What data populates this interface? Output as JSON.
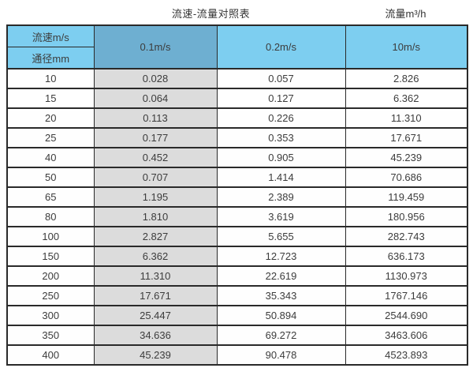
{
  "header": {
    "title_left": "流速-流量对照表",
    "title_right": "流量m³/h"
  },
  "table": {
    "corner_top": "流速m/s",
    "corner_bottom": "通径mm",
    "columns": [
      "0.1m/s",
      "0.2m/s",
      "10m/s"
    ],
    "rows": [
      {
        "dn": "10",
        "values": [
          "0.028",
          "0.057",
          "2.826"
        ]
      },
      {
        "dn": "15",
        "values": [
          "0.064",
          "0.127",
          "6.362"
        ]
      },
      {
        "dn": "20",
        "values": [
          "0.113",
          "0.226",
          "11.310"
        ]
      },
      {
        "dn": "25",
        "values": [
          "0.177",
          "0.353",
          "17.671"
        ]
      },
      {
        "dn": "40",
        "values": [
          "0.452",
          "0.905",
          "45.239"
        ]
      },
      {
        "dn": "50",
        "values": [
          "0.707",
          "1.414",
          "70.686"
        ]
      },
      {
        "dn": "65",
        "values": [
          "1.195",
          "2.389",
          "119.459"
        ]
      },
      {
        "dn": "80",
        "values": [
          "1.810",
          "3.619",
          "180.956"
        ]
      },
      {
        "dn": "100",
        "values": [
          "2.827",
          "5.655",
          "282.743"
        ]
      },
      {
        "dn": "150",
        "values": [
          "6.362",
          "12.723",
          "636.173"
        ]
      },
      {
        "dn": "200",
        "values": [
          "11.310",
          "22.619",
          "1130.973"
        ]
      },
      {
        "dn": "250",
        "values": [
          "17.671",
          "35.343",
          "1767.146"
        ]
      },
      {
        "dn": "300",
        "values": [
          "25.447",
          "50.894",
          "2544.690"
        ]
      },
      {
        "dn": "350",
        "values": [
          "34.636",
          "69.272",
          "3463.606"
        ]
      },
      {
        "dn": "400",
        "values": [
          "45.239",
          "90.478",
          "4523.893"
        ]
      }
    ]
  },
  "colors": {
    "light_blue": "#7dcef0",
    "dark_blue": "#6eafd1",
    "grey_col": "#dcdcdc",
    "border": "#2a2a2a",
    "text": "#3c3c3c"
  },
  "chart_data": {
    "type": "table",
    "title": "流速-流量对照表",
    "units_label": "流量m³/h",
    "row_header_label_top": "流速m/s",
    "row_header_label_bottom": "通径mm",
    "columns": [
      "通径mm",
      "0.1m/s",
      "0.2m/s",
      "10m/s"
    ],
    "rows": [
      [
        10,
        0.028,
        0.057,
        2.826
      ],
      [
        15,
        0.064,
        0.127,
        6.362
      ],
      [
        20,
        0.113,
        0.226,
        11.31
      ],
      [
        25,
        0.177,
        0.353,
        17.671
      ],
      [
        40,
        0.452,
        0.905,
        45.239
      ],
      [
        50,
        0.707,
        1.414,
        70.686
      ],
      [
        65,
        1.195,
        2.389,
        119.459
      ],
      [
        80,
        1.81,
        3.619,
        180.956
      ],
      [
        100,
        2.827,
        5.655,
        282.743
      ],
      [
        150,
        6.362,
        12.723,
        636.173
      ],
      [
        200,
        11.31,
        22.619,
        1130.973
      ],
      [
        250,
        17.671,
        35.343,
        1767.146
      ],
      [
        300,
        25.447,
        50.894,
        2544.69
      ],
      [
        350,
        34.636,
        69.272,
        3463.606
      ],
      [
        400,
        45.239,
        90.478,
        4523.893
      ]
    ]
  }
}
